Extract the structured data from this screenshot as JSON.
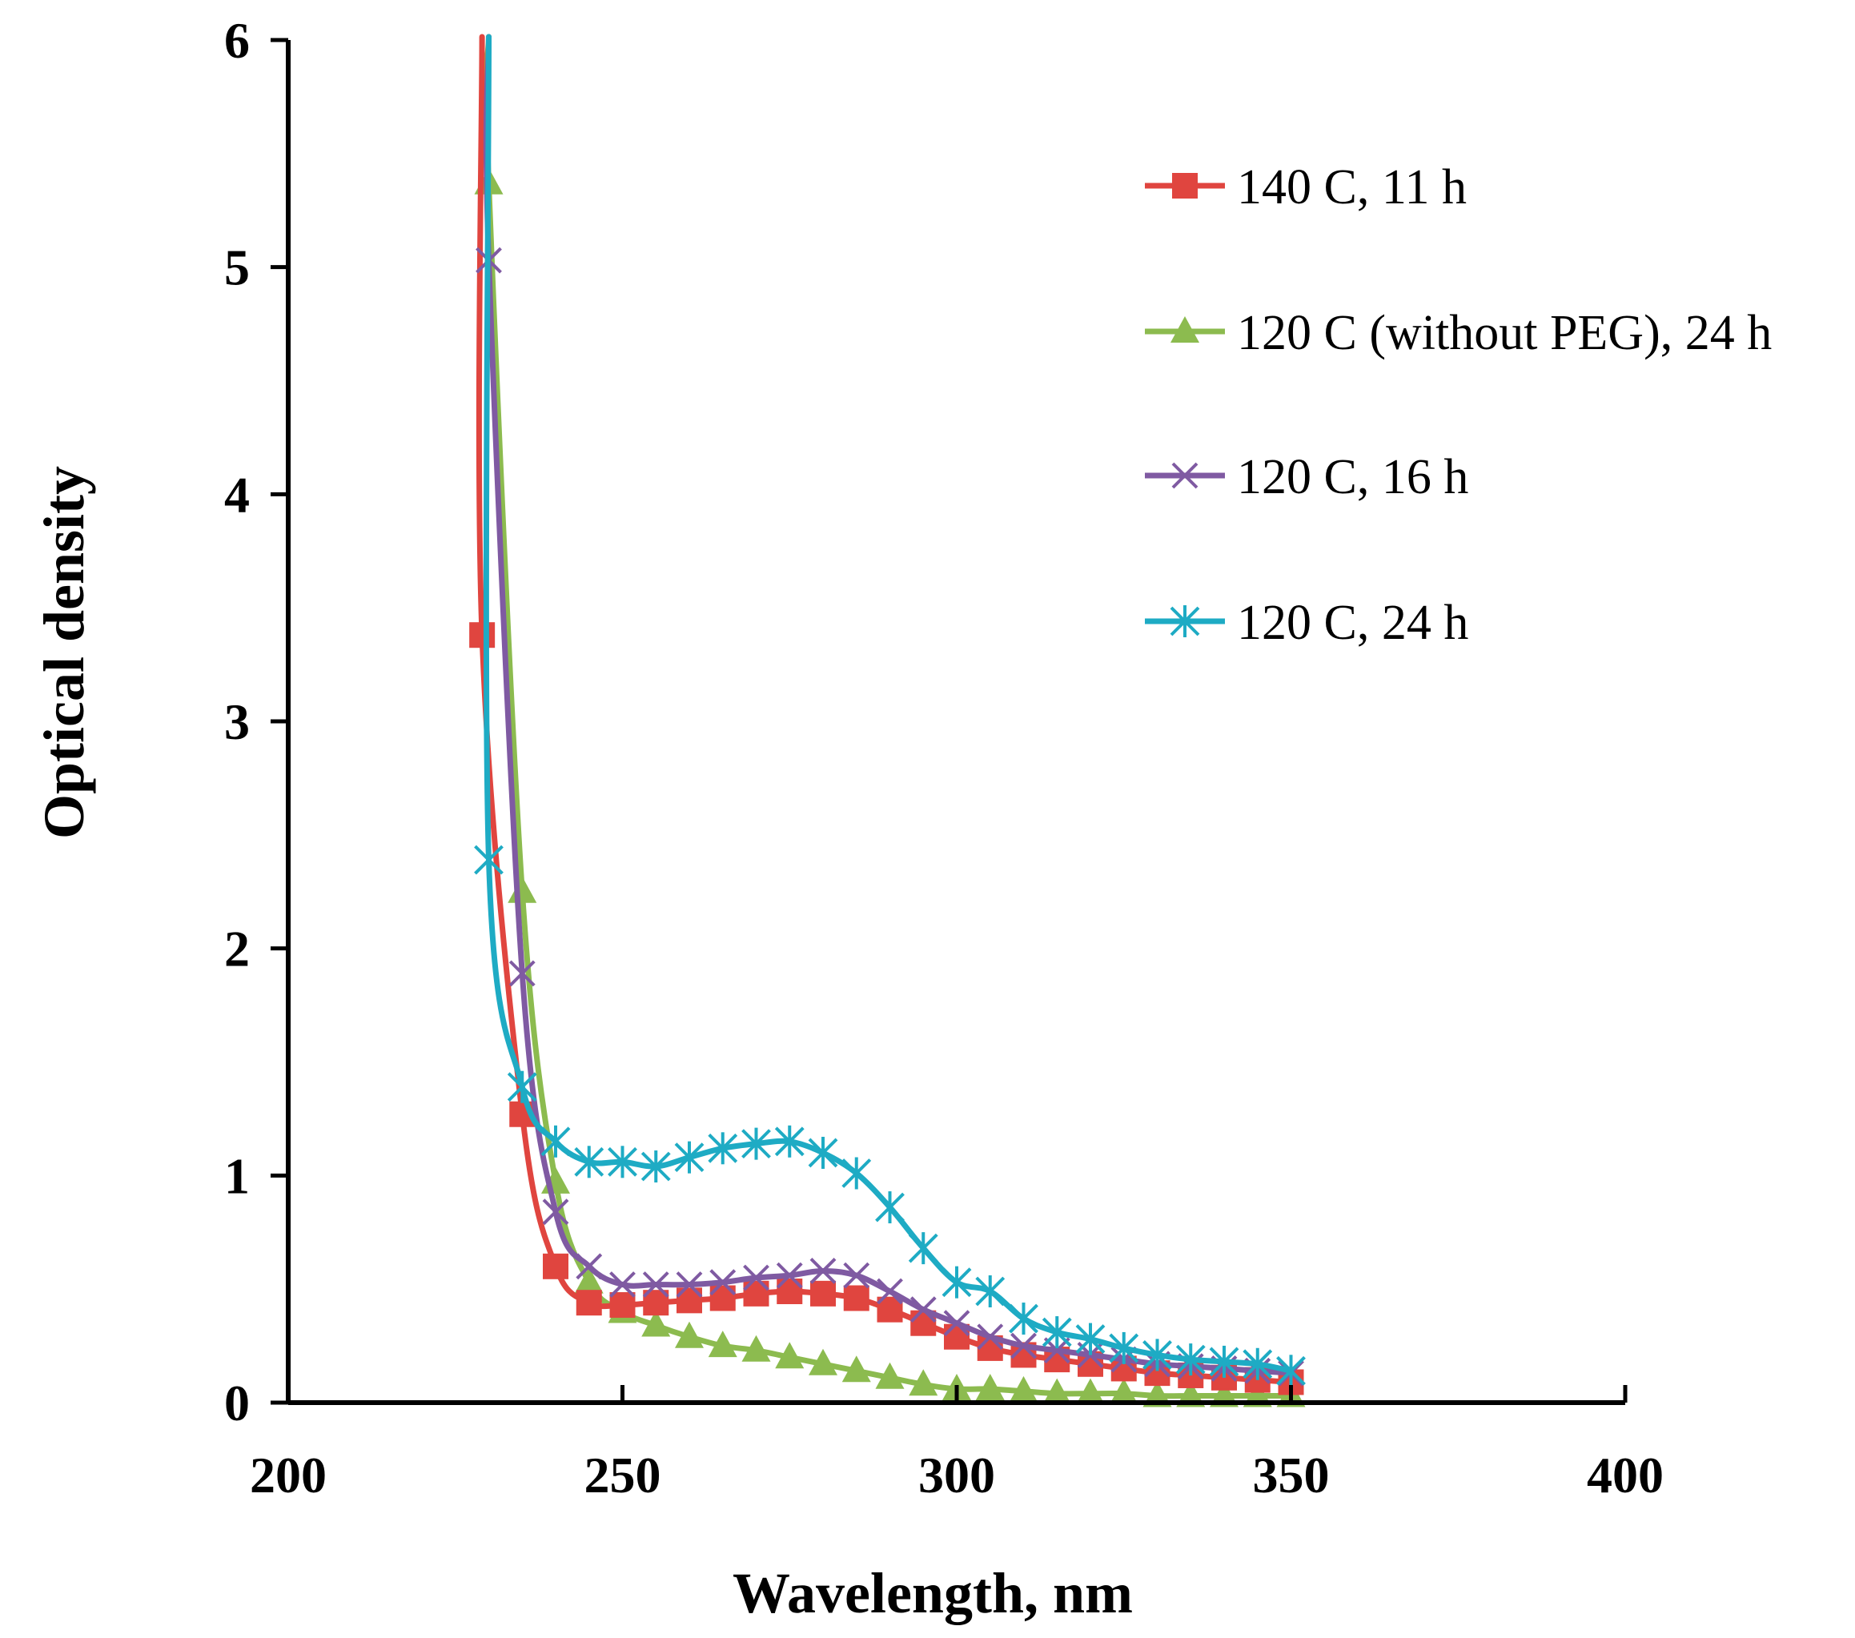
{
  "chart_data": {
    "type": "scatter",
    "title": "",
    "xlabel": "Wavelength, nm",
    "ylabel": "Optical density",
    "xlim": [
      200,
      400
    ],
    "ylim": [
      0,
      6
    ],
    "xticks": [
      200,
      250,
      300,
      350,
      400
    ],
    "yticks": [
      0,
      1,
      2,
      3,
      4,
      5,
      6
    ],
    "grid": false,
    "legend_position": "top-right",
    "series": [
      {
        "name": "140 C, 11 h",
        "color": "#e0453f",
        "marker": "square",
        "x": [
          229,
          235,
          240,
          245,
          250,
          255,
          260,
          265,
          270,
          275,
          280,
          285,
          290,
          295,
          300,
          305,
          310,
          315,
          320,
          325,
          330,
          335,
          340,
          345,
          350
        ],
        "y": [
          3.38,
          1.27,
          0.6,
          0.44,
          0.43,
          0.44,
          0.45,
          0.46,
          0.48,
          0.49,
          0.48,
          0.46,
          0.41,
          0.35,
          0.29,
          0.24,
          0.21,
          0.19,
          0.17,
          0.15,
          0.13,
          0.12,
          0.11,
          0.1,
          0.09
        ]
      },
      {
        "name": "120 C (without PEG), 24 h",
        "color": "#8cbb4f",
        "marker": "triangle",
        "x": [
          230,
          235,
          240,
          245,
          250,
          255,
          260,
          265,
          270,
          275,
          280,
          285,
          290,
          295,
          300,
          305,
          310,
          315,
          320,
          325,
          330,
          335,
          340,
          345,
          350
        ],
        "y": [
          5.37,
          2.25,
          0.97,
          0.53,
          0.4,
          0.34,
          0.29,
          0.25,
          0.23,
          0.2,
          0.17,
          0.14,
          0.11,
          0.08,
          0.06,
          0.06,
          0.05,
          0.04,
          0.04,
          0.04,
          0.03,
          0.03,
          0.03,
          0.03,
          0.03
        ]
      },
      {
        "name": "120 C, 16 h",
        "color": "#7f5aa2",
        "marker": "x",
        "x": [
          230,
          235,
          240,
          245,
          250,
          255,
          260,
          265,
          270,
          275,
          280,
          285,
          290,
          295,
          300,
          305,
          310,
          315,
          320,
          325,
          330,
          335,
          340,
          345,
          350
        ],
        "y": [
          5.03,
          1.89,
          0.84,
          0.6,
          0.52,
          0.52,
          0.52,
          0.53,
          0.55,
          0.56,
          0.58,
          0.56,
          0.49,
          0.41,
          0.35,
          0.29,
          0.25,
          0.23,
          0.21,
          0.19,
          0.17,
          0.16,
          0.15,
          0.14,
          0.13
        ]
      },
      {
        "name": "120 C, 24 h",
        "color": "#1eabc4",
        "marker": "asterisk",
        "x": [
          230,
          235,
          240,
          245,
          250,
          255,
          260,
          265,
          270,
          275,
          280,
          285,
          290,
          295,
          300,
          305,
          310,
          315,
          320,
          325,
          330,
          335,
          340,
          345,
          350
        ],
        "y": [
          2.39,
          1.39,
          1.15,
          1.06,
          1.06,
          1.04,
          1.08,
          1.12,
          1.14,
          1.15,
          1.1,
          1.01,
          0.86,
          0.68,
          0.53,
          0.49,
          0.37,
          0.31,
          0.28,
          0.24,
          0.21,
          0.19,
          0.18,
          0.17,
          0.14
        ]
      }
    ]
  }
}
